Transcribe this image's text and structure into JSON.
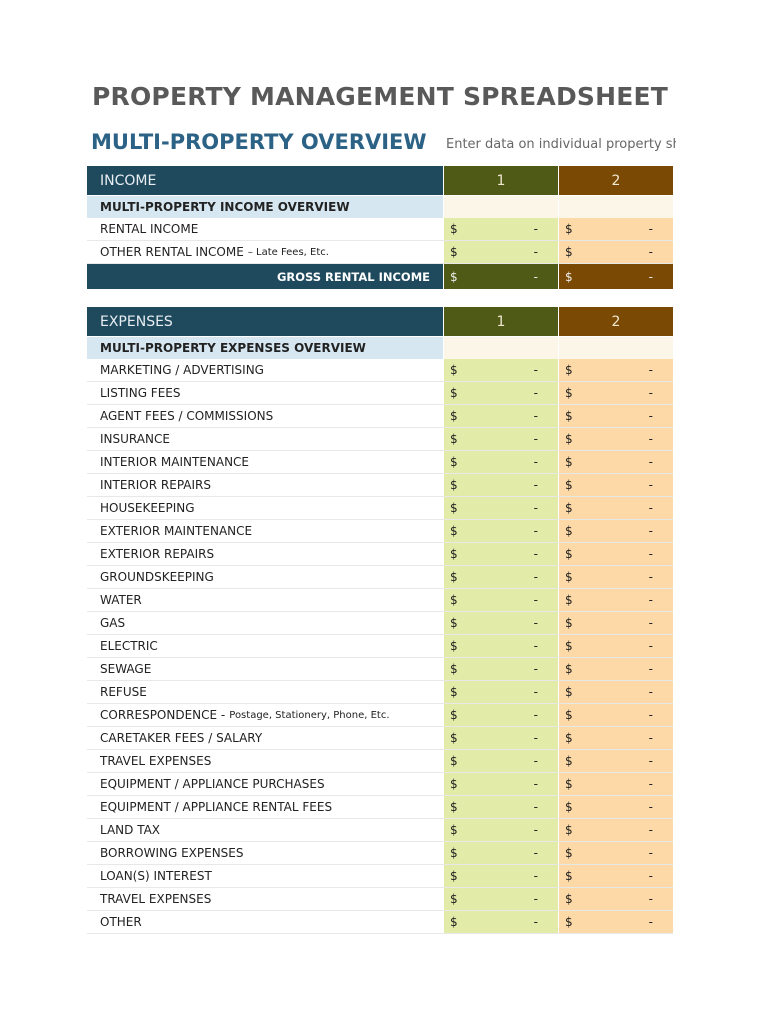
{
  "title": "PROPERTY MANAGEMENT SPREADSHEET TEMPLATE",
  "subtitle": "MULTI-PROPERTY OVERVIEW",
  "note": "Enter data on individual property sheets",
  "currency": "$",
  "empty_value": "-",
  "colors": {
    "navy": "#1F4A5E",
    "property1": "#4F5A16",
    "property2": "#7A4A05",
    "property1_cell": "#E2ECA8",
    "property2_cell": "#FCD9A6"
  },
  "income": {
    "header": "INCOME",
    "columns": [
      "1",
      "2"
    ],
    "section": "MULTI-PROPERTY INCOME OVERVIEW",
    "rows": [
      {
        "label": "RENTAL INCOME",
        "note": ""
      },
      {
        "label": "OTHER RENTAL INCOME",
        "note": "– Late Fees, Etc."
      }
    ],
    "total": "GROSS RENTAL INCOME"
  },
  "expenses": {
    "header": "EXPENSES",
    "columns": [
      "1",
      "2"
    ],
    "section": "MULTI-PROPERTY EXPENSES OVERVIEW",
    "rows": [
      {
        "label": "MARKETING / ADVERTISING",
        "note": ""
      },
      {
        "label": "LISTING FEES",
        "note": ""
      },
      {
        "label": "AGENT FEES / COMMISSIONS",
        "note": ""
      },
      {
        "label": "INSURANCE",
        "note": ""
      },
      {
        "label": "INTERIOR MAINTENANCE",
        "note": ""
      },
      {
        "label": "INTERIOR REPAIRS",
        "note": ""
      },
      {
        "label": "HOUSEKEEPING",
        "note": ""
      },
      {
        "label": "EXTERIOR MAINTENANCE",
        "note": ""
      },
      {
        "label": "EXTERIOR REPAIRS",
        "note": ""
      },
      {
        "label": "GROUNDSKEEPING",
        "note": ""
      },
      {
        "label": "WATER",
        "note": ""
      },
      {
        "label": "GAS",
        "note": ""
      },
      {
        "label": "ELECTRIC",
        "note": ""
      },
      {
        "label": "SEWAGE",
        "note": ""
      },
      {
        "label": "REFUSE",
        "note": ""
      },
      {
        "label": "CORRESPONDENCE -",
        "note": "Postage, Stationery, Phone, Etc."
      },
      {
        "label": "CARETAKER FEES / SALARY",
        "note": ""
      },
      {
        "label": "TRAVEL EXPENSES",
        "note": ""
      },
      {
        "label": "EQUIPMENT / APPLIANCE PURCHASES",
        "note": ""
      },
      {
        "label": "EQUIPMENT / APPLIANCE RENTAL FEES",
        "note": ""
      },
      {
        "label": "LAND TAX",
        "note": ""
      },
      {
        "label": "BORROWING EXPENSES",
        "note": ""
      },
      {
        "label": "LOAN(S) INTEREST",
        "note": ""
      },
      {
        "label": "TRAVEL EXPENSES",
        "note": ""
      },
      {
        "label": "OTHER",
        "note": ""
      }
    ]
  }
}
